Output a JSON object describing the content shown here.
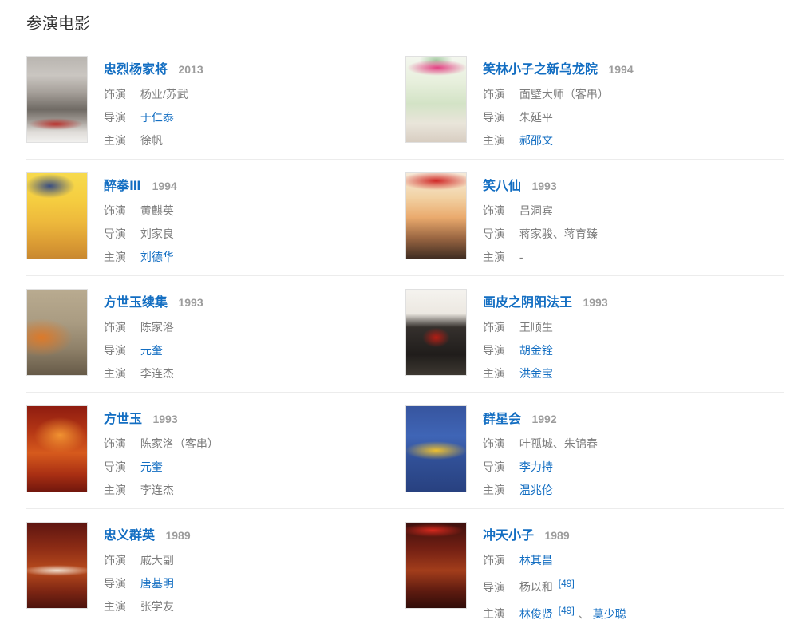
{
  "section": {
    "title": "参演电影"
  },
  "labels": {
    "role": "饰演",
    "director": "导演",
    "starring": "主演"
  },
  "colors": {
    "link": "#136ec2",
    "year": "#9c9c9c",
    "text_gray": "#7d7d7d",
    "divider": "#ececec"
  },
  "movies": [
    {
      "title": "忠烈杨家将",
      "year": "2013",
      "role": "杨业/苏武",
      "director": "于仁泰",
      "starring": "徐帆",
      "poster_style": "background:radial-gradient(65% 10% at 48% 79%, rgba(185,35,30,0.9), rgba(185,35,30,0) 70%),linear-gradient(180deg,#b9b5b0 0%,#cac6c1 22%,#a59f99 42%,#6f6a64 62%,#9b958f 74%,#dedbd7 88%,#f1f0ee 100%)"
    },
    {
      "title": "笑林小子之新乌龙院",
      "year": "1994",
      "role": "面壁大师（客串）",
      "director": "朱延平",
      "starring": "郝邵文",
      "poster_style": "background:radial-gradient(70% 13% at 52% 13%, rgba(225,55,125,0.95), rgba(225,55,125,0) 72%),radial-gradient(40% 12% at 50% 4%, rgba(90,160,90,0.5), rgba(90,160,90,0) 70%),linear-gradient(180deg,#f4f7ef 0%,#e7efdc 30%,#d3e3c6 55%,#e9e5da 78%,#d8cec2 100%)"
    },
    {
      "title": "醉拳Ⅲ",
      "year": "1994",
      "role": "黄麒英",
      "director": "刘家良",
      "starring": "刘德华",
      "poster_style": "background:radial-gradient(58% 20% at 38% 15%, rgba(25,55,140,0.85), rgba(25,55,140,0) 72%),linear-gradient(180deg,#f7da4d 0%,#f5cd40 32%,#edb83c 58%,#db9c34 82%,#c9882f 100%)"
    },
    {
      "title": "笑八仙",
      "year": "1993",
      "role": "吕洞宾",
      "director": "蒋家骏、蒋育臻",
      "starring": "-",
      "poster_style": "background:radial-gradient(85% 15% at 50% 9%, rgba(205,25,25,0.92), rgba(205,25,25,0) 72%),linear-gradient(180deg,#f6ead9 0%,#f2d2a4 28%,#eaaa6d 52%,#9a6642 76%,#402d22 100%)"
    },
    {
      "title": "方世玉续集",
      "year": "1993",
      "role": "陈家洛",
      "director": "元奎",
      "starring": "李连杰",
      "poster_style": "background:radial-gradient(75% 32% at 24% 56%, rgba(232,118,28,0.85), rgba(232,118,28,0) 70%),linear-gradient(180deg,#b9ab90 0%,#aa9c82 38%,#90826a 68%,#665a48 100%)"
    },
    {
      "title": "画皮之阴阳法王",
      "year": "1993",
      "role": "王顺生",
      "director": "胡金铨",
      "starring": "洪金宝",
      "poster_style": "background:radial-gradient(32% 16% at 50% 56%, rgba(195,28,18,0.9), rgba(195,28,18,0) 72%),linear-gradient(180deg,#f5f3ef 0%,#ece8e1 28%,#35302d 44%,#201d1b 76%,#3d3831 100%)"
    },
    {
      "title": "方世玉",
      "year": "1993",
      "role": "陈家洛（客串）",
      "director": "元奎",
      "starring": "李连杰",
      "poster_style": "background:radial-gradient(62% 30% at 55% 34%, rgba(255,168,56,0.8), rgba(255,168,56,0) 70%),linear-gradient(180deg,#8f1c10 0%,#b53715 30%,#d65a1d 55%,#a92f13 80%,#72170d 100%)"
    },
    {
      "title": "群星会",
      "year": "1992",
      "role": "叶孤城、朱锦春",
      "director": "李力持",
      "starring": "温兆伦",
      "poster_style": "background:radial-gradient(72% 15% at 50% 52%, rgba(248,198,42,0.95), rgba(248,198,42,0) 72%),linear-gradient(180deg,#37559f 0%,#3f65b6 35%,#315097 62%,#284180 100%)"
    },
    {
      "title": "忠义群英",
      "year": "1989",
      "role": "戚大副",
      "director": "唐基明",
      "starring": "张学友",
      "poster_style": "background:radial-gradient(82% 9% at 50% 56%, rgba(245,240,228,0.9), rgba(245,240,228,0) 72%),linear-gradient(180deg,#5e1511 0%,#8d2c15 30%,#b84b1d 56%,#7e2613 80%,#4d130d 100%)"
    },
    {
      "title": "冲天小子",
      "year": "1989",
      "role": "林其昌",
      "director": "杨以和",
      "director_ref": "[49]",
      "starring_1": "林俊贤",
      "starring_ref": "[49]",
      "starring_sep": "、",
      "starring_2": "莫少聪",
      "poster_style": "background:radial-gradient(72% 11% at 44% 9%, rgba(222,42,30,0.95), rgba(222,42,30,0) 72%),linear-gradient(180deg,#3d100d 0%,#721f13 30%,#a23d1b 56%,#5e1b10 80%,#310d09 100%)"
    }
  ]
}
